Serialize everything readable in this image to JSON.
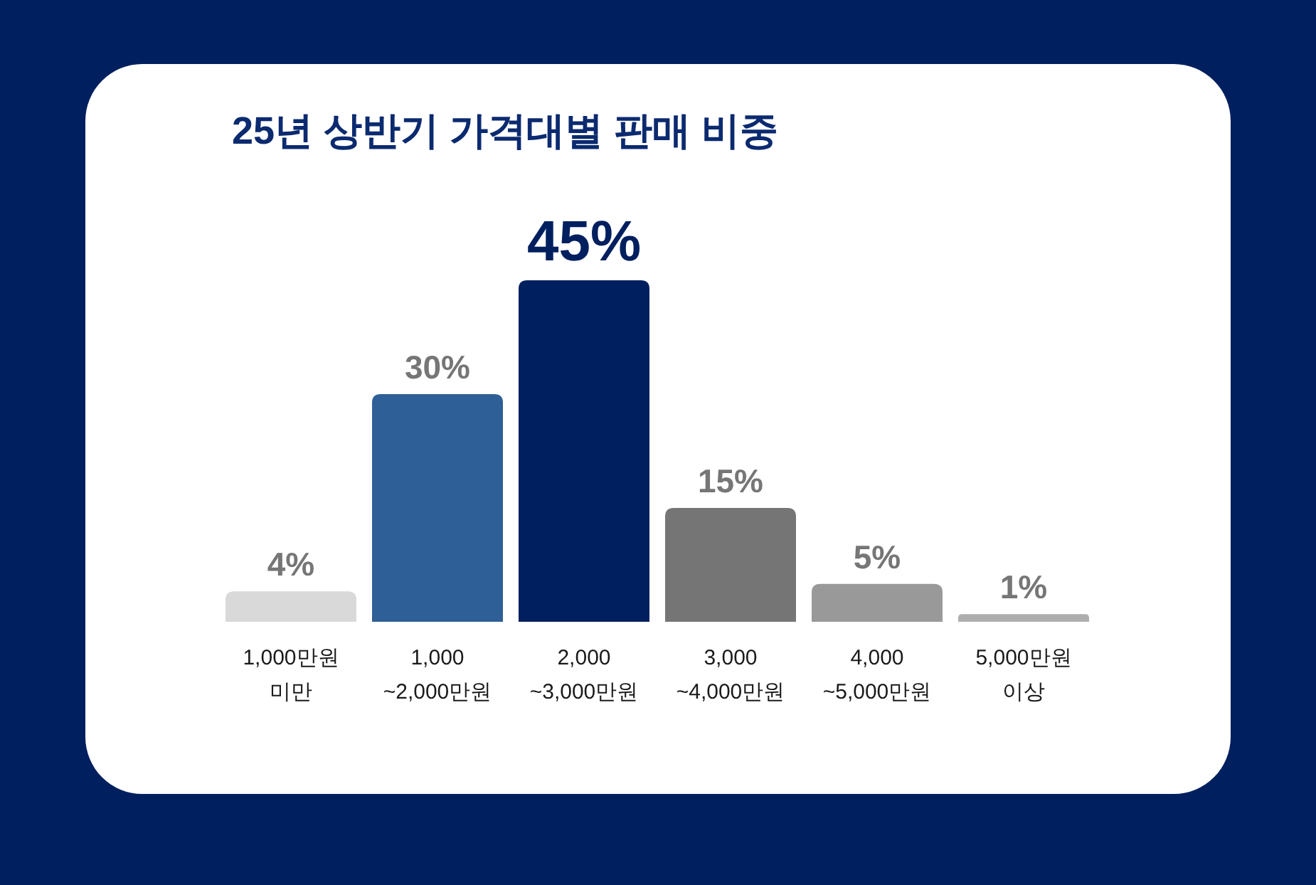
{
  "chart_data": {
    "type": "bar",
    "title": "25년 상반기 가격대별 판매 비중",
    "categories": [
      "1,000만원\n미만",
      "1,000\n~2,000만원",
      "2,000\n~3,000만원",
      "3,000\n~4,000만원",
      "4,000\n~5,000만원",
      "5,000만원\n이상"
    ],
    "values": [
      4,
      30,
      45,
      15,
      5,
      1
    ],
    "colors": [
      "#d9d9d9",
      "#2e5f96",
      "#001f5f",
      "#757575",
      "#999999",
      "#aeaeae"
    ],
    "value_labels": [
      "4%",
      "30%",
      "45%",
      "15%",
      "5%",
      "1%"
    ]
  }
}
